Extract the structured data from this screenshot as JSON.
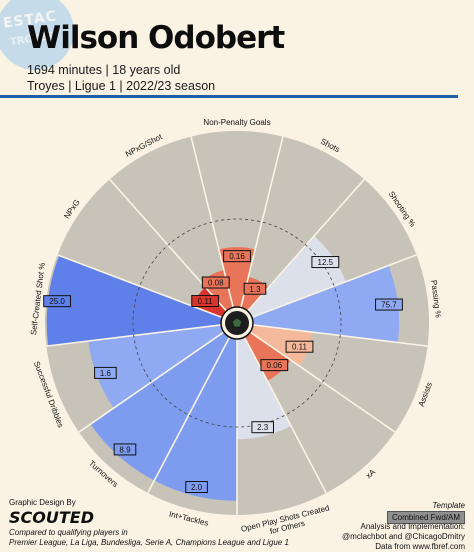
{
  "header": {
    "player_name": "Wilson Odobert",
    "line1": "1694 minutes | 18 years old",
    "line2": "Troyes | Ligue 1 | 2022/23 season"
  },
  "logo": {
    "text_top": "ESTAC",
    "text_bottom": "TROYES"
  },
  "footer": {
    "credit": "Graphic Design By",
    "brand": "SCOUTED",
    "note_line1": "Compared to qualifying players in",
    "note_line2": "Premier League, La Liga, Bundesliga, Serie A, Champions League and Ligue 1",
    "template_label": "Template",
    "template_value": "Combined Fwd/AM",
    "impl_line1": "Analysis and Implementation:",
    "impl_line2": "@mclachbot and @ChicagoDmitry",
    "impl_line3": "Data from www.fbref.com"
  },
  "chart_data": {
    "type": "radar-bar",
    "metrics": [
      {
        "label": "Non-Penalty Goals",
        "value": "0.16",
        "percentile": 34,
        "color": "#e8755a"
      },
      {
        "label": "Shots",
        "value": "1.3",
        "percentile": 18,
        "color": "#e8755a"
      },
      {
        "label": "Shooting %",
        "value": "12.5",
        "percentile": 57,
        "color": "#dbe0ea"
      },
      {
        "label": "Passing %",
        "value": "75.7",
        "percentile": 83,
        "color": "#8fa9f3"
      },
      {
        "label": "Assists",
        "value": "0.11",
        "percentile": 34,
        "color": "#f4b89b"
      },
      {
        "label": "xA",
        "value": "0.06",
        "percentile": 28,
        "color": "#e8755a"
      },
      {
        "label": "Open Play Shots Created for Others",
        "value": "2.3",
        "percentile": 57,
        "color": "#dbe0ea"
      },
      {
        "label": "Int+Tackles",
        "value": "2.0",
        "percentile": 92,
        "color": "#7d9cf0"
      },
      {
        "label": "Turnovers",
        "value": "8.9",
        "percentile": 92,
        "color": "#7d9cf0"
      },
      {
        "label": "Successful Dribbles",
        "value": "1.6",
        "percentile": 76,
        "color": "#8fa9f3"
      },
      {
        "label": "Self-Created Shot %",
        "value": "25.0",
        "percentile": 99,
        "color": "#5f80e8"
      },
      {
        "label": "NPxG",
        "value": "0.11",
        "percentile": 18,
        "color": "#d9342e"
      },
      {
        "label": "NPxG/Shot",
        "value": "0.08",
        "percentile": 22,
        "color": "#e8755a"
      }
    ],
    "range": [
      0,
      100
    ],
    "reference_circle": 50,
    "colors": {
      "background": "#faf3e4",
      "wedge_bg": "#c8c3b9",
      "separator": "#faf3e4",
      "rule": "#1f5fa8"
    }
  }
}
